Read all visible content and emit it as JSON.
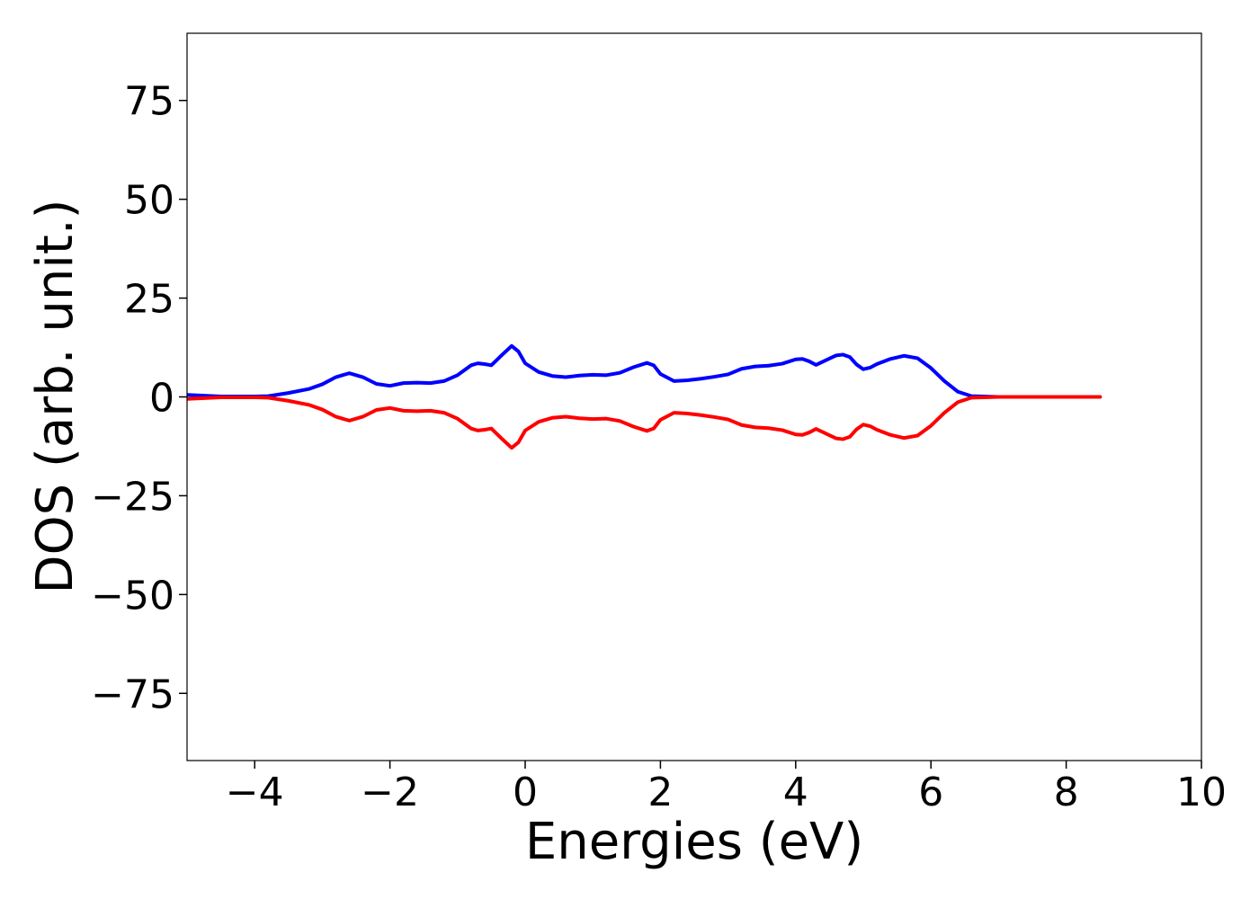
{
  "chart_data": {
    "type": "line",
    "xlabel": "Energies (eV)",
    "ylabel": "DOS (arb. unit.)",
    "xlim": [
      -5,
      10
    ],
    "ylim": [
      -92,
      92
    ],
    "xticks": [
      {
        "value": -4,
        "label": "−4"
      },
      {
        "value": -2,
        "label": "−2"
      },
      {
        "value": 0,
        "label": "0"
      },
      {
        "value": 2,
        "label": "2"
      },
      {
        "value": 4,
        "label": "4"
      },
      {
        "value": 6,
        "label": "6"
      },
      {
        "value": 8,
        "label": "8"
      },
      {
        "value": 10,
        "label": "10"
      }
    ],
    "yticks": [
      {
        "value": 75,
        "label": "75"
      },
      {
        "value": 50,
        "label": "50"
      },
      {
        "value": 25,
        "label": "25"
      },
      {
        "value": 0,
        "label": "0"
      },
      {
        "value": -25,
        "label": "−25"
      },
      {
        "value": -50,
        "label": "−50"
      },
      {
        "value": -75,
        "label": "−75"
      }
    ],
    "grid": false,
    "series": [
      {
        "color": "#0000ff",
        "x": [
          -5.0,
          -4.5,
          -4.0,
          -3.8,
          -3.5,
          -3.2,
          -3.0,
          -2.8,
          -2.6,
          -2.4,
          -2.2,
          -2.0,
          -1.8,
          -1.6,
          -1.4,
          -1.2,
          -1.0,
          -0.8,
          -0.7,
          -0.6,
          -0.5,
          -0.35,
          -0.2,
          -0.1,
          0.0,
          0.2,
          0.4,
          0.6,
          0.8,
          1.0,
          1.2,
          1.4,
          1.6,
          1.8,
          1.9,
          2.0,
          2.2,
          2.4,
          2.6,
          2.8,
          3.0,
          3.2,
          3.4,
          3.6,
          3.8,
          4.0,
          4.1,
          4.2,
          4.3,
          4.5,
          4.6,
          4.7,
          4.8,
          4.9,
          5.0,
          5.1,
          5.2,
          5.4,
          5.6,
          5.8,
          6.0,
          6.2,
          6.4,
          6.6,
          7.0,
          7.5,
          8.0,
          8.5
        ],
        "y": [
          0.5,
          0.1,
          0.1,
          0.2,
          1.0,
          2.0,
          3.2,
          5.0,
          6.0,
          5.0,
          3.3,
          2.8,
          3.5,
          3.6,
          3.5,
          4.0,
          5.5,
          8.0,
          8.5,
          8.3,
          8.0,
          10.5,
          12.9,
          11.5,
          8.5,
          6.3,
          5.3,
          5.0,
          5.4,
          5.6,
          5.5,
          6.1,
          7.5,
          8.6,
          8.0,
          5.8,
          4.0,
          4.2,
          4.6,
          5.1,
          5.7,
          7.1,
          7.7,
          7.9,
          8.4,
          9.5,
          9.6,
          9.0,
          8.1,
          9.7,
          10.5,
          10.7,
          10.1,
          8.2,
          7.0,
          7.4,
          8.3,
          9.6,
          10.4,
          9.8,
          7.3,
          4.0,
          1.3,
          0.2,
          0.0,
          0.0,
          0.0,
          0.0
        ]
      },
      {
        "color": "#ff0000",
        "x": [
          -5.0,
          -4.5,
          -4.0,
          -3.8,
          -3.5,
          -3.2,
          -3.0,
          -2.8,
          -2.6,
          -2.4,
          -2.2,
          -2.0,
          -1.8,
          -1.6,
          -1.4,
          -1.2,
          -1.0,
          -0.8,
          -0.7,
          -0.6,
          -0.5,
          -0.35,
          -0.2,
          -0.1,
          0.0,
          0.2,
          0.4,
          0.6,
          0.8,
          1.0,
          1.2,
          1.4,
          1.6,
          1.8,
          1.9,
          2.0,
          2.2,
          2.4,
          2.6,
          2.8,
          3.0,
          3.2,
          3.4,
          3.6,
          3.8,
          4.0,
          4.1,
          4.2,
          4.3,
          4.5,
          4.6,
          4.7,
          4.8,
          4.9,
          5.0,
          5.1,
          5.2,
          5.4,
          5.6,
          5.8,
          6.0,
          6.2,
          6.4,
          6.6,
          7.0,
          7.5,
          8.0,
          8.5
        ],
        "y": [
          -0.5,
          -0.1,
          -0.1,
          -0.2,
          -1.0,
          -2.0,
          -3.2,
          -5.0,
          -6.0,
          -5.0,
          -3.3,
          -2.8,
          -3.5,
          -3.6,
          -3.5,
          -4.0,
          -5.5,
          -8.0,
          -8.5,
          -8.3,
          -8.0,
          -10.5,
          -12.9,
          -11.5,
          -8.5,
          -6.3,
          -5.3,
          -5.0,
          -5.4,
          -5.6,
          -5.5,
          -6.1,
          -7.5,
          -8.6,
          -8.0,
          -5.8,
          -4.0,
          -4.2,
          -4.6,
          -5.1,
          -5.7,
          -7.1,
          -7.7,
          -7.9,
          -8.4,
          -9.5,
          -9.6,
          -9.0,
          -8.1,
          -9.7,
          -10.5,
          -10.7,
          -10.1,
          -8.2,
          -7.0,
          -7.4,
          -8.3,
          -9.6,
          -10.4,
          -9.8,
          -7.3,
          -4.0,
          -1.3,
          -0.2,
          0.0,
          0.0,
          0.0,
          0.0
        ]
      }
    ]
  }
}
